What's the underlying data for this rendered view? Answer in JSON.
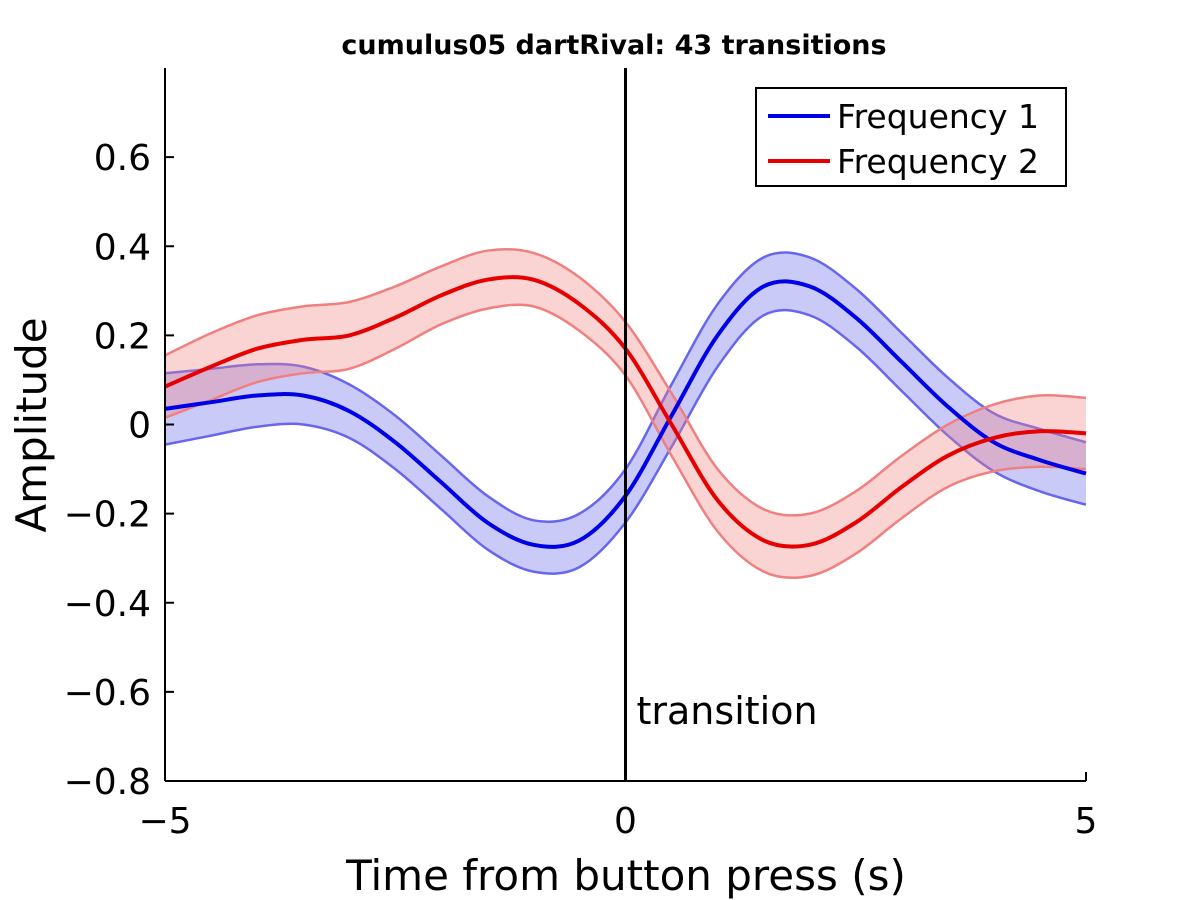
{
  "chart_data": {
    "type": "line",
    "title": "cumulus05 dartRival: 43 transitions",
    "xlabel": "Time from button press (s)",
    "ylabel": "Amplitude",
    "xlim": [
      -5,
      5
    ],
    "ylim": [
      -0.8,
      0.8
    ],
    "xticks": [
      -5,
      0,
      5
    ],
    "xtick_labels": [
      "−5",
      "0",
      "5"
    ],
    "yticks": [
      -0.8,
      -0.6,
      -0.4,
      -0.2,
      0,
      0.2,
      0.4,
      0.6
    ],
    "ytick_labels": [
      "−0.8",
      "−0.6",
      "−0.4",
      "−0.2",
      "0",
      "0.2",
      "0.4",
      "0.6"
    ],
    "grid": false,
    "legend_position": "top-right",
    "series": [
      {
        "name": "Frequency 1",
        "color": "#0000e6",
        "band_color": "#6666ee",
        "x": [
          -5,
          -4.5,
          -4,
          -3.5,
          -3,
          -2.5,
          -2,
          -1.5,
          -1,
          -0.5,
          0,
          0.5,
          1,
          1.5,
          2,
          2.5,
          3,
          3.5,
          4,
          4.5,
          5
        ],
        "y": [
          0.035,
          0.05,
          0.065,
          0.065,
          0.03,
          -0.04,
          -0.13,
          -0.22,
          -0.27,
          -0.26,
          -0.16,
          0.02,
          0.2,
          0.31,
          0.31,
          0.24,
          0.14,
          0.04,
          -0.04,
          -0.08,
          -0.11
        ],
        "upper": [
          0.115,
          0.125,
          0.135,
          0.13,
          0.09,
          0.02,
          -0.07,
          -0.16,
          -0.215,
          -0.2,
          -0.1,
          0.09,
          0.27,
          0.375,
          0.375,
          0.305,
          0.205,
          0.105,
          0.025,
          -0.01,
          -0.04
        ],
        "lower": [
          -0.045,
          -0.025,
          -0.005,
          0.0,
          -0.03,
          -0.1,
          -0.19,
          -0.28,
          -0.33,
          -0.32,
          -0.22,
          -0.05,
          0.13,
          0.245,
          0.245,
          0.175,
          0.075,
          -0.025,
          -0.105,
          -0.15,
          -0.18
        ]
      },
      {
        "name": "Frequency 2",
        "color": "#e60000",
        "band_color": "#f08080",
        "x": [
          -5,
          -4.5,
          -4,
          -3.5,
          -3,
          -2.5,
          -2,
          -1.5,
          -1,
          -0.5,
          0,
          0.5,
          1,
          1.5,
          2,
          2.5,
          3,
          3.5,
          4,
          4.5,
          5
        ],
        "y": [
          0.085,
          0.13,
          0.17,
          0.19,
          0.2,
          0.24,
          0.29,
          0.325,
          0.325,
          0.27,
          0.17,
          0.0,
          -0.17,
          -0.26,
          -0.27,
          -0.22,
          -0.14,
          -0.07,
          -0.03,
          -0.015,
          -0.02
        ],
        "upper": [
          0.155,
          0.205,
          0.245,
          0.265,
          0.275,
          0.31,
          0.355,
          0.39,
          0.385,
          0.33,
          0.23,
          0.07,
          -0.1,
          -0.19,
          -0.2,
          -0.15,
          -0.07,
          0.0,
          0.045,
          0.065,
          0.06
        ],
        "lower": [
          0.015,
          0.055,
          0.095,
          0.115,
          0.125,
          0.17,
          0.225,
          0.26,
          0.265,
          0.21,
          0.11,
          -0.07,
          -0.24,
          -0.33,
          -0.34,
          -0.29,
          -0.21,
          -0.14,
          -0.105,
          -0.095,
          -0.1
        ]
      }
    ],
    "annotations": [
      {
        "text": "transition",
        "x": 0
      }
    ]
  }
}
